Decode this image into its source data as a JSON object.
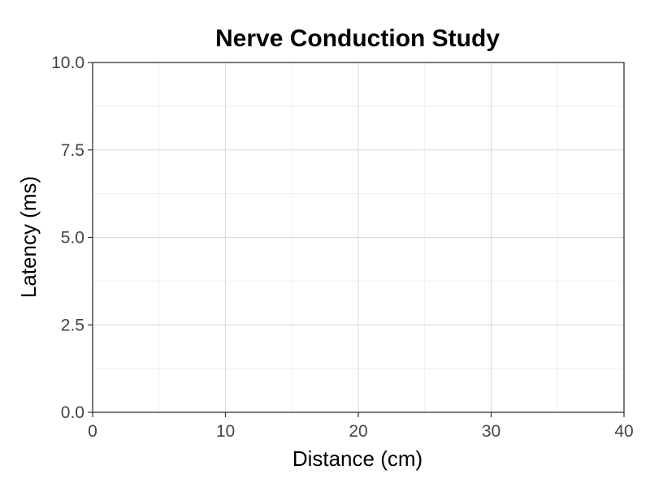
{
  "chart_data": {
    "type": "scatter",
    "title": "Nerve Conduction Study",
    "xlabel": "Distance (cm)",
    "ylabel": "Latency (ms)",
    "xlim": [
      0,
      40
    ],
    "ylim": [
      0,
      10
    ],
    "x_ticks": [
      0,
      10,
      20,
      30,
      40
    ],
    "x_tick_labels": [
      "0",
      "10",
      "20",
      "30",
      "40"
    ],
    "y_ticks": [
      0,
      2.5,
      5,
      7.5,
      10
    ],
    "y_tick_labels": [
      "0.0",
      "2.5",
      "5.0",
      "7.5",
      "10.0"
    ],
    "x_minor": [
      5,
      15,
      25,
      35
    ],
    "y_minor": [
      1.25,
      3.75,
      6.25,
      8.75
    ],
    "grid": true,
    "series": []
  }
}
